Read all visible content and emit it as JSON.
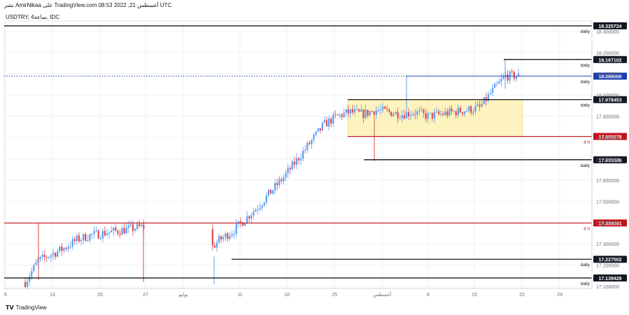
{
  "header": {
    "caption": "نشر AmirNikaa على TradingView.com 08:53 2022 ,21 أغسطس UTC",
    "symbol": "USDTRY, 4ساعة, IDC"
  },
  "branding": {
    "logo_text": "TradingView"
  },
  "colors": {
    "up": "#5b9cf6",
    "down": "#e0494f",
    "range_fill": "#fbf1b4",
    "support_line": "#000000",
    "red_line": "#c2141c",
    "price_line": "#1e3fae"
  },
  "chart_data": {
    "type": "candlestick",
    "symbol": "USDTRY",
    "timeframe": "4h",
    "x_ticks": [
      "6",
      "13",
      "20",
      "27",
      "يوليو",
      "11",
      "18",
      "25",
      "أغسطس",
      "8",
      "15",
      "22",
      "29"
    ],
    "y_ticks": [
      "18.300000",
      "18.200000",
      "18.100000",
      "18.000000",
      "17.900000",
      "17.800000",
      "17.700000",
      "17.600000",
      "17.500000",
      "17.400000",
      "17.300000",
      "17.200000",
      "17.100000"
    ],
    "ylim": [
      17.08,
      18.345
    ],
    "grid": true,
    "levels": [
      {
        "price": 18.325724,
        "price_label": "18.325724",
        "tag": "daily",
        "color": "#000000",
        "kind": "black"
      },
      {
        "price": 18.167102,
        "price_label": "18.167102",
        "tag": "daily",
        "color": "#000000",
        "kind": "black"
      },
      {
        "price": 18.089,
        "price_label": "18.089000",
        "tag": "daily",
        "color": "#1e3fae",
        "kind": "current"
      },
      {
        "price": 17.978453,
        "price_label": "17.978453",
        "tag": "daily",
        "color": "#000000",
        "kind": "black"
      },
      {
        "price": 17.805079,
        "price_label": "17.805079",
        "tag": "4 h",
        "color": "#c2141c",
        "kind": "red"
      },
      {
        "price": 17.695586,
        "price_label": "17.695586",
        "tag": "daily",
        "color": "#000000",
        "kind": "black"
      },
      {
        "price": 17.398061,
        "price_label": "17.398061",
        "tag": "4 h",
        "color": "#c2141c",
        "kind": "red"
      },
      {
        "price": 17.227502,
        "price_label": "17.227502",
        "tag": "daily",
        "color": "#000000",
        "kind": "black"
      },
      {
        "price": 17.139429,
        "price_label": "17.139429",
        "tag": "daily",
        "color": "#000000",
        "kind": "black"
      }
    ],
    "consolidation_box": {
      "price_high": 17.978453,
      "price_low": 17.805079
    },
    "price_path": [
      [
        0,
        17.12
      ],
      [
        1,
        17.22
      ],
      [
        2,
        17.25
      ],
      [
        3,
        17.28
      ],
      [
        4,
        17.32
      ],
      [
        5,
        17.34
      ],
      [
        6,
        17.35
      ],
      [
        7,
        17.36
      ],
      [
        8,
        17.37
      ],
      [
        9,
        17.38
      ],
      [
        10,
        17.37
      ],
      [
        11,
        17.3
      ],
      [
        12,
        17.2
      ],
      [
        13,
        17.17
      ],
      [
        14,
        17.26
      ],
      [
        15,
        17.32
      ],
      [
        16,
        17.36
      ],
      [
        17,
        17.42
      ],
      [
        18,
        17.48
      ],
      [
        19,
        17.55
      ],
      [
        20,
        17.62
      ],
      [
        21,
        17.7
      ],
      [
        22,
        17.78
      ],
      [
        23,
        17.86
      ],
      [
        24,
        17.9
      ],
      [
        25,
        17.92
      ],
      [
        26,
        17.91
      ],
      [
        27,
        17.93
      ],
      [
        28,
        17.92
      ],
      [
        29,
        17.91
      ],
      [
        30,
        17.92
      ],
      [
        31,
        17.9
      ],
      [
        32,
        17.91
      ],
      [
        33,
        17.92
      ],
      [
        34,
        17.93
      ],
      [
        35,
        17.94
      ],
      [
        36,
        18.02
      ],
      [
        37,
        18.09
      ],
      [
        38,
        18.09
      ]
    ]
  }
}
